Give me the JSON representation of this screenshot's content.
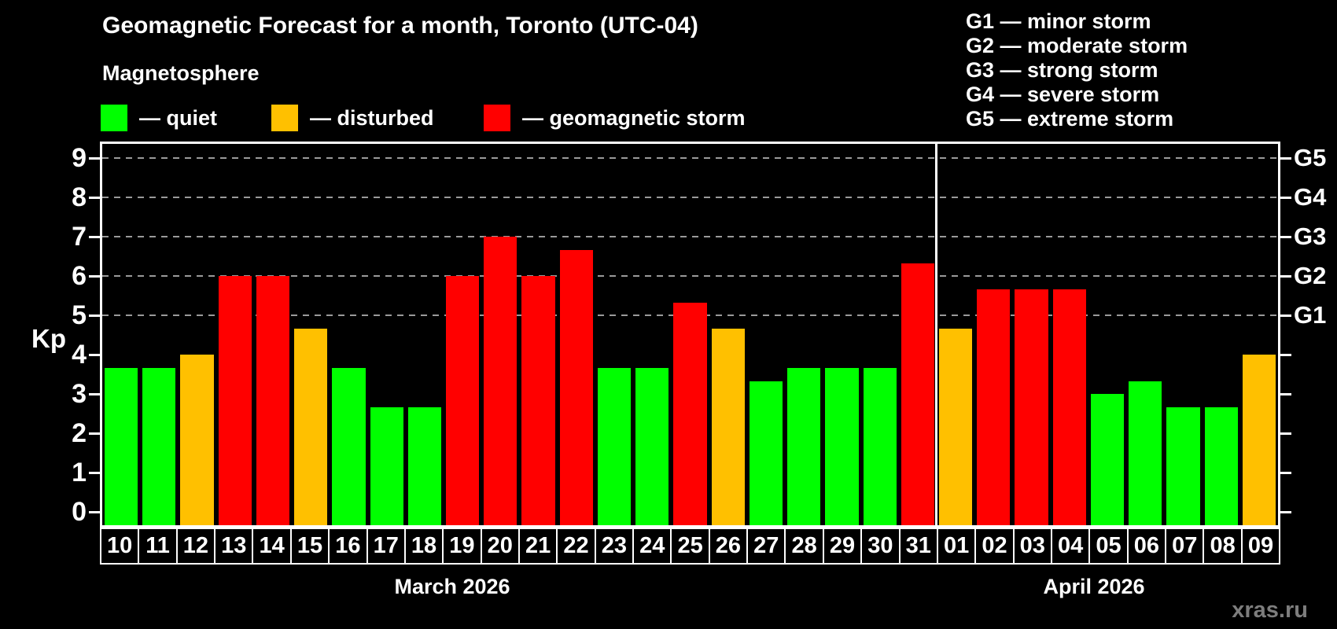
{
  "title": "Geomagnetic Forecast for a month, Toronto (UTC-04)",
  "subtitle": "Magnetosphere",
  "legend": {
    "items": [
      {
        "label": "— quiet",
        "status": "quiet"
      },
      {
        "label": "— disturbed",
        "status": "disturbed"
      },
      {
        "label": "— geomagnetic storm",
        "status": "storm"
      }
    ]
  },
  "storm_scale_legend": [
    "G1 — minor storm",
    "G2 — moderate storm",
    "G3 — strong storm",
    "G4 — severe storm",
    "G5 — extreme storm"
  ],
  "watermark": "xras.ru",
  "chart_data": {
    "type": "bar",
    "ylabel": "Kp",
    "ylim": [
      0,
      9
    ],
    "yticks": [
      0,
      1,
      2,
      3,
      4,
      5,
      6,
      7,
      8,
      9
    ],
    "gridlines": [
      5,
      6,
      7,
      8,
      9
    ],
    "grid_style": "dashed",
    "legend_position": "top",
    "right_axis_labels": [
      {
        "value": 5,
        "label": "G1"
      },
      {
        "value": 6,
        "label": "G2"
      },
      {
        "value": 7,
        "label": "G3"
      },
      {
        "value": 8,
        "label": "G4"
      },
      {
        "value": 9,
        "label": "G5"
      }
    ],
    "colors": {
      "quiet": "#00ff00",
      "disturbed": "#ffc000",
      "storm": "#ff0000"
    },
    "months": [
      {
        "label": "March 2026",
        "count": 22
      },
      {
        "label": "April 2026",
        "count": 9
      }
    ],
    "days": [
      {
        "day": "10",
        "kp": 3.67,
        "status": "quiet"
      },
      {
        "day": "11",
        "kp": 3.67,
        "status": "quiet"
      },
      {
        "day": "12",
        "kp": 4.0,
        "status": "disturbed"
      },
      {
        "day": "13",
        "kp": 6.0,
        "status": "storm"
      },
      {
        "day": "14",
        "kp": 6.0,
        "status": "storm"
      },
      {
        "day": "15",
        "kp": 4.67,
        "status": "disturbed"
      },
      {
        "day": "16",
        "kp": 3.67,
        "status": "quiet"
      },
      {
        "day": "17",
        "kp": 2.67,
        "status": "quiet"
      },
      {
        "day": "18",
        "kp": 2.67,
        "status": "quiet"
      },
      {
        "day": "19",
        "kp": 6.0,
        "status": "storm"
      },
      {
        "day": "20",
        "kp": 7.0,
        "status": "storm"
      },
      {
        "day": "21",
        "kp": 6.0,
        "status": "storm"
      },
      {
        "day": "22",
        "kp": 6.67,
        "status": "storm"
      },
      {
        "day": "23",
        "kp": 3.67,
        "status": "quiet"
      },
      {
        "day": "24",
        "kp": 3.67,
        "status": "quiet"
      },
      {
        "day": "25",
        "kp": 5.33,
        "status": "storm"
      },
      {
        "day": "26",
        "kp": 4.67,
        "status": "disturbed"
      },
      {
        "day": "27",
        "kp": 3.33,
        "status": "quiet"
      },
      {
        "day": "28",
        "kp": 3.67,
        "status": "quiet"
      },
      {
        "day": "29",
        "kp": 3.67,
        "status": "quiet"
      },
      {
        "day": "30",
        "kp": 3.67,
        "status": "quiet"
      },
      {
        "day": "31",
        "kp": 6.33,
        "status": "storm"
      },
      {
        "day": "01",
        "kp": 4.67,
        "status": "disturbed"
      },
      {
        "day": "02",
        "kp": 5.67,
        "status": "storm"
      },
      {
        "day": "03",
        "kp": 5.67,
        "status": "storm"
      },
      {
        "day": "04",
        "kp": 5.67,
        "status": "storm"
      },
      {
        "day": "05",
        "kp": 3.0,
        "status": "quiet"
      },
      {
        "day": "06",
        "kp": 3.33,
        "status": "quiet"
      },
      {
        "day": "07",
        "kp": 2.67,
        "status": "quiet"
      },
      {
        "day": "08",
        "kp": 2.67,
        "status": "quiet"
      },
      {
        "day": "09",
        "kp": 4.0,
        "status": "disturbed"
      }
    ]
  }
}
